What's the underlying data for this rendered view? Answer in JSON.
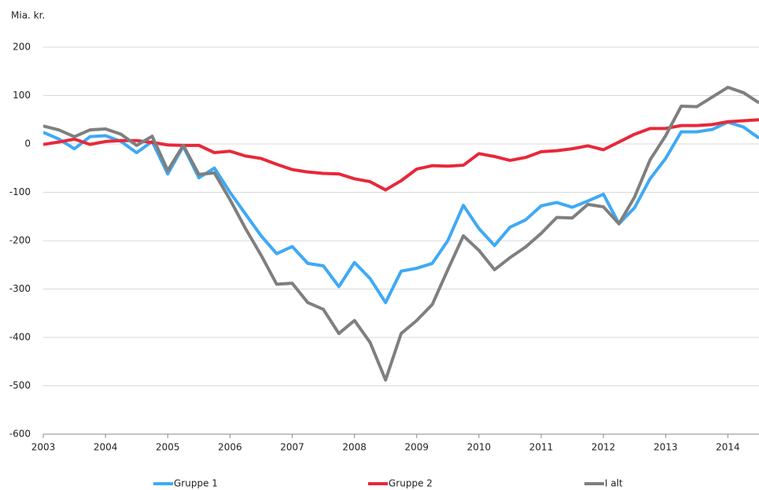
{
  "chart_data": {
    "type": "line",
    "y_unit_label": "Mia. kr.",
    "x": [
      2003,
      2003.25,
      2003.5,
      2003.75,
      2004,
      2004.25,
      2004.5,
      2004.75,
      2005,
      2005.25,
      2005.5,
      2005.75,
      2006,
      2006.25,
      2006.5,
      2006.75,
      2007,
      2007.25,
      2007.5,
      2007.75,
      2008,
      2008.25,
      2008.5,
      2008.75,
      2009,
      2009.25,
      2009.5,
      2009.75,
      2010,
      2010.25,
      2010.5,
      2010.75,
      2011,
      2011.25,
      2011.5,
      2011.75,
      2012,
      2012.25,
      2012.5,
      2012.75,
      2013,
      2013.25,
      2013.5,
      2013.75,
      2014,
      2014.25,
      2014.5
    ],
    "series": [
      {
        "name": "Gruppe 1",
        "color": "#3fa9f5",
        "values": [
          24,
          10,
          -10,
          15,
          17,
          5,
          -18,
          5,
          -62,
          -5,
          -70,
          -50,
          -100,
          -145,
          -190,
          -227,
          -212,
          -247,
          -252,
          -295,
          -245,
          -278,
          -328,
          -263,
          -257,
          -247,
          -200,
          -127,
          -175,
          -210,
          -172,
          -157,
          -128,
          -121,
          -131,
          -118,
          -104,
          -165,
          -132,
          -72,
          -30,
          25,
          25,
          30,
          45,
          35,
          12
        ]
      },
      {
        "name": "Gruppe 2",
        "color": "#e8283a",
        "values": [
          -1,
          4,
          10,
          -1,
          5,
          7,
          7,
          3,
          -2,
          -3,
          -3,
          -18,
          -15,
          -25,
          -30,
          -42,
          -53,
          -58,
          -61,
          -62,
          -72,
          -78,
          -95,
          -76,
          -52,
          -45,
          -46,
          -44,
          -20,
          -26,
          -34,
          -28,
          -16,
          -14,
          -10,
          -4,
          -12,
          4,
          20,
          32,
          32,
          38,
          38,
          40,
          46,
          48,
          50
        ]
      },
      {
        "name": "I alt",
        "color": "#7f7f7f",
        "values": [
          37,
          29,
          15,
          29,
          31,
          20,
          -3,
          16,
          -55,
          -3,
          -63,
          -60,
          -115,
          -175,
          -230,
          -290,
          -288,
          -328,
          -342,
          -392,
          -365,
          -410,
          -488,
          -392,
          -365,
          -332,
          -260,
          -190,
          -220,
          -260,
          -235,
          -213,
          -185,
          -152,
          -153,
          -125,
          -130,
          -165,
          -110,
          -33,
          17,
          78,
          77,
          97,
          117,
          106,
          85
        ]
      }
    ],
    "xlim": [
      2003,
      2014.5
    ],
    "xticks": [
      2003,
      2004,
      2005,
      2006,
      2007,
      2008,
      2009,
      2010,
      2011,
      2012,
      2013,
      2014
    ],
    "ylim": [
      -600,
      200
    ],
    "yticks": [
      -600,
      -500,
      -400,
      -300,
      -200,
      -100,
      0,
      100,
      200
    ],
    "grid": true,
    "legend": "bottom"
  }
}
